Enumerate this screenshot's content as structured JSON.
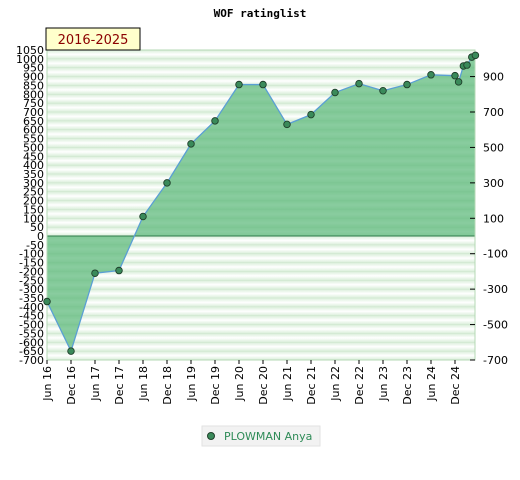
{
  "chart_data": {
    "type": "area",
    "title": "WOF ratinglist",
    "badge": "2016-2025",
    "xlabel": "",
    "ylabel": "",
    "ylim": [
      -700,
      1050
    ],
    "y_left_ticks": [
      -700,
      -650,
      -600,
      -550,
      -500,
      -450,
      -400,
      -350,
      -300,
      -250,
      -200,
      -150,
      -100,
      -50,
      0,
      50,
      100,
      150,
      200,
      250,
      300,
      350,
      400,
      450,
      500,
      550,
      600,
      650,
      700,
      750,
      800,
      850,
      900,
      950,
      1000,
      1050
    ],
    "y_right_ticks": [
      -700,
      -500,
      -300,
      -100,
      100,
      300,
      500,
      700,
      900
    ],
    "x_tick_labels": [
      "Jun 16",
      "Dec 16",
      "Jun 17",
      "Dec 17",
      "Jun 18",
      "Dec 18",
      "Jun 19",
      "Dec 19",
      "Jun 20",
      "Dec 20",
      "Jun 21",
      "Dec 21",
      "Jun 22",
      "Dec 22",
      "Jun 23",
      "Dec 23",
      "Jun 24",
      "Dec 24"
    ],
    "x_range": [
      0,
      17.85
    ],
    "legend": {
      "placement": "bottom-center"
    },
    "grid": true,
    "colors": {
      "line": "#5a9fd4",
      "fill": "#5cb87a",
      "marker": "#3a8a5a",
      "marker_edge": "#1f3f2a",
      "legend_text": "#2e8b57",
      "badge_bg": "#ffffcc",
      "badge_text": "#8b0000"
    },
    "series": [
      {
        "name": "PLOWMAN Anya",
        "x": [
          0,
          1,
          2,
          3,
          4,
          5,
          6,
          7,
          8,
          9,
          10,
          11,
          12,
          13,
          14,
          15,
          16,
          17,
          17.15,
          17.35,
          17.5,
          17.7,
          17.85
        ],
        "values": [
          -370,
          -650,
          -210,
          -195,
          110,
          300,
          520,
          650,
          855,
          855,
          630,
          685,
          810,
          860,
          820,
          855,
          910,
          905,
          870,
          960,
          965,
          1010,
          1020
        ]
      }
    ]
  }
}
